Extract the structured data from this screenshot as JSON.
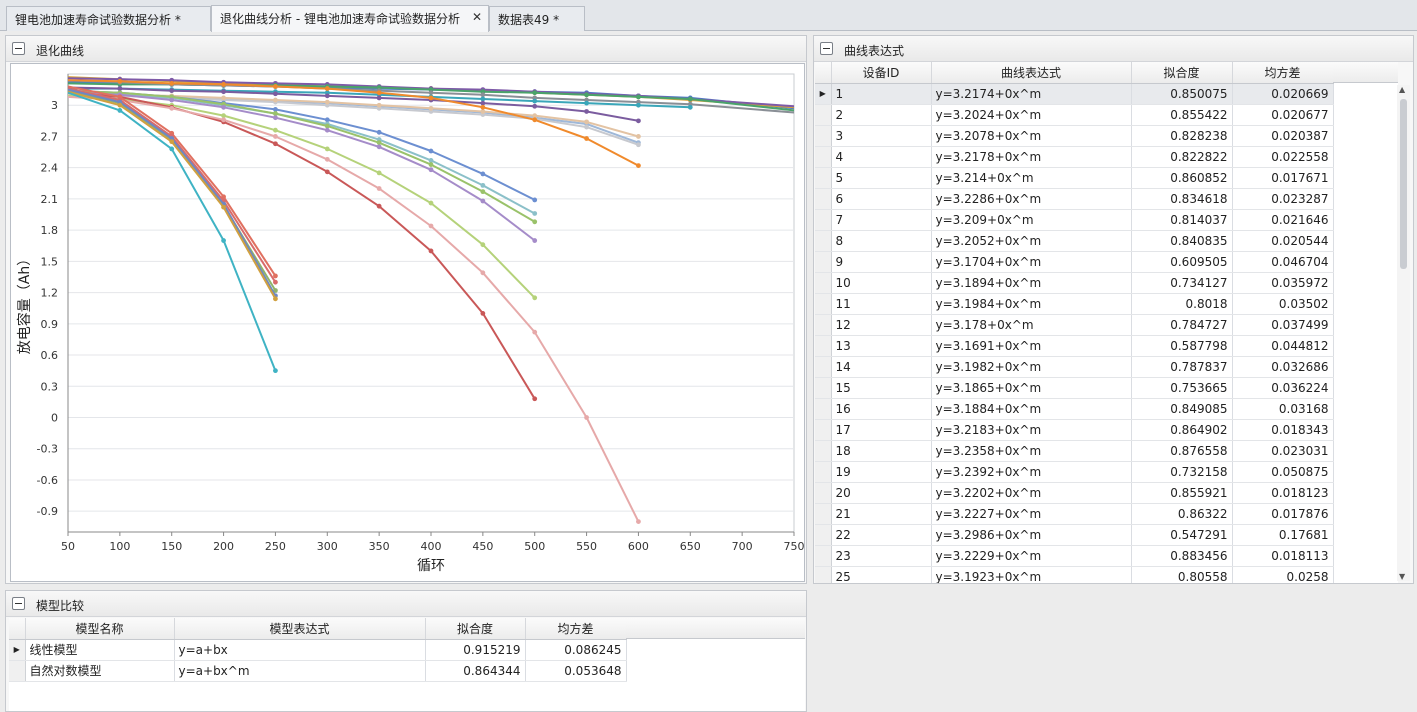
{
  "tabs": [
    {
      "label": "锂电池加速寿命试验数据分析 *"
    },
    {
      "label": "退化曲线分析 - 锂电池加速寿命试验数据分析"
    },
    {
      "label": "数据表49 *"
    }
  ],
  "chart_panel": {
    "title": "退化曲线"
  },
  "expr_panel": {
    "title": "曲线表达式",
    "columns": [
      "设备ID",
      "曲线表达式",
      "拟合度",
      "均方差"
    ],
    "rows": [
      {
        "id": "1",
        "expr": "y=3.2174+0x^m",
        "fit": "0.850075",
        "mse": "0.020669"
      },
      {
        "id": "2",
        "expr": "y=3.2024+0x^m",
        "fit": "0.855422",
        "mse": "0.020677"
      },
      {
        "id": "3",
        "expr": "y=3.2078+0x^m",
        "fit": "0.828238",
        "mse": "0.020387"
      },
      {
        "id": "4",
        "expr": "y=3.2178+0x^m",
        "fit": "0.822822",
        "mse": "0.022558"
      },
      {
        "id": "5",
        "expr": "y=3.214+0x^m",
        "fit": "0.860852",
        "mse": "0.017671"
      },
      {
        "id": "6",
        "expr": "y=3.2286+0x^m",
        "fit": "0.834618",
        "mse": "0.023287"
      },
      {
        "id": "7",
        "expr": "y=3.209+0x^m",
        "fit": "0.814037",
        "mse": "0.021646"
      },
      {
        "id": "8",
        "expr": "y=3.2052+0x^m",
        "fit": "0.840835",
        "mse": "0.020544"
      },
      {
        "id": "9",
        "expr": "y=3.1704+0x^m",
        "fit": "0.609505",
        "mse": "0.046704"
      },
      {
        "id": "10",
        "expr": "y=3.1894+0x^m",
        "fit": "0.734127",
        "mse": "0.035972"
      },
      {
        "id": "11",
        "expr": "y=3.1984+0x^m",
        "fit": "0.8018",
        "mse": "0.03502"
      },
      {
        "id": "12",
        "expr": "y=3.178+0x^m",
        "fit": "0.784727",
        "mse": "0.037499"
      },
      {
        "id": "13",
        "expr": "y=3.1691+0x^m",
        "fit": "0.587798",
        "mse": "0.044812"
      },
      {
        "id": "14",
        "expr": "y=3.1982+0x^m",
        "fit": "0.787837",
        "mse": "0.032686"
      },
      {
        "id": "15",
        "expr": "y=3.1865+0x^m",
        "fit": "0.753665",
        "mse": "0.036224"
      },
      {
        "id": "16",
        "expr": "y=3.1884+0x^m",
        "fit": "0.849085",
        "mse": "0.03168"
      },
      {
        "id": "17",
        "expr": "y=3.2183+0x^m",
        "fit": "0.864902",
        "mse": "0.018343"
      },
      {
        "id": "18",
        "expr": "y=3.2358+0x^m",
        "fit": "0.876558",
        "mse": "0.023031"
      },
      {
        "id": "19",
        "expr": "y=3.2392+0x^m",
        "fit": "0.732158",
        "mse": "0.050875"
      },
      {
        "id": "20",
        "expr": "y=3.2202+0x^m",
        "fit": "0.855921",
        "mse": "0.018123"
      },
      {
        "id": "21",
        "expr": "y=3.2227+0x^m",
        "fit": "0.86322",
        "mse": "0.017876"
      },
      {
        "id": "22",
        "expr": "y=3.2986+0x^m",
        "fit": "0.547291",
        "mse": "0.17681"
      },
      {
        "id": "23",
        "expr": "y=3.2229+0x^m",
        "fit": "0.883456",
        "mse": "0.018113"
      },
      {
        "id": "25",
        "expr": "y=3.1923+0x^m",
        "fit": "0.80558",
        "mse": "0.0258"
      }
    ]
  },
  "model_panel": {
    "title": "模型比较",
    "columns": [
      "模型名称",
      "模型表达式",
      "拟合度",
      "均方差"
    ],
    "rows": [
      {
        "name": "线性模型",
        "expr": "y=a+bx",
        "fit": "0.915219",
        "mse": "0.086245"
      },
      {
        "name": "自然对数模型",
        "expr": "y=a+bx^m",
        "fit": "0.864344",
        "mse": "0.053648"
      }
    ]
  },
  "chart_data": {
    "type": "line",
    "title": "",
    "xlabel": "循环",
    "ylabel": "放电容量（Ah）",
    "xlim": [
      50,
      750
    ],
    "ylim": [
      -1.1,
      3.3
    ],
    "xticks": [
      50,
      100,
      150,
      200,
      250,
      300,
      350,
      400,
      450,
      500,
      550,
      600,
      650,
      700,
      750
    ],
    "yticks": [
      3,
      2.7,
      2.4,
      2.1,
      1.8,
      1.5,
      1.2,
      0.9,
      0.6,
      0.3,
      0,
      -0.3,
      -0.6,
      -0.9
    ],
    "grid": true,
    "series": [
      {
        "color": "#4e7ac7",
        "x": [
          50,
          100,
          150,
          200,
          250,
          300,
          350,
          400,
          450,
          500,
          550,
          600,
          650,
          750
        ],
        "y": [
          3.22,
          3.21,
          3.2,
          3.19,
          3.18,
          3.17,
          3.16,
          3.15,
          3.14,
          3.13,
          3.12,
          3.09,
          3.07,
          2.97
        ]
      },
      {
        "color": "#d8a43b",
        "x": [
          50,
          100,
          150,
          200,
          250,
          300,
          350,
          400,
          450,
          500,
          550,
          600,
          650,
          750
        ],
        "y": [
          3.27,
          3.25,
          3.23,
          3.21,
          3.2,
          3.18,
          3.17,
          3.16,
          3.14,
          3.12,
          3.1,
          3.08,
          3.05,
          2.98
        ]
      },
      {
        "color": "#7e5aa8",
        "x": [
          50,
          100,
          150,
          200,
          250,
          300,
          350,
          400,
          450,
          500,
          550,
          600,
          650,
          750
        ],
        "y": [
          3.26,
          3.25,
          3.24,
          3.22,
          3.21,
          3.2,
          3.18,
          3.16,
          3.15,
          3.13,
          3.11,
          3.09,
          3.06,
          2.99
        ]
      },
      {
        "color": "#4aa36b",
        "x": [
          50,
          100,
          150,
          200,
          250,
          300,
          350,
          400,
          450,
          500,
          550,
          600,
          650,
          750
        ],
        "y": [
          3.21,
          3.2,
          3.2,
          3.19,
          3.19,
          3.18,
          3.17,
          3.15,
          3.13,
          3.12,
          3.1,
          3.08,
          3.06,
          2.95
        ]
      },
      {
        "color": "#8a8f96",
        "x": [
          50,
          100,
          150,
          200,
          250,
          300,
          350,
          400,
          450,
          500,
          550,
          600,
          650,
          750
        ],
        "y": [
          3.24,
          3.22,
          3.2,
          3.19,
          3.18,
          3.16,
          3.14,
          3.12,
          3.1,
          3.07,
          3.05,
          3.03,
          3.01,
          2.93
        ]
      },
      {
        "color": "#3aa6b9",
        "x": [
          50,
          100,
          150,
          200,
          250,
          300,
          350,
          400,
          450,
          500,
          550,
          600,
          650
        ],
        "y": [
          3.16,
          3.16,
          3.15,
          3.14,
          3.13,
          3.12,
          3.1,
          3.08,
          3.06,
          3.04,
          3.02,
          3.0,
          2.98
        ]
      },
      {
        "color": "#9fb8d8",
        "x": [
          50,
          100,
          150,
          200,
          250,
          300,
          350,
          400,
          450,
          500,
          550,
          600
        ],
        "y": [
          3.12,
          3.1,
          3.08,
          3.06,
          3.04,
          3.02,
          2.99,
          2.96,
          2.93,
          2.88,
          2.82,
          2.64
        ]
      },
      {
        "color": "#c7c9cf",
        "x": [
          50,
          100,
          150,
          200,
          250,
          300,
          350,
          400,
          450,
          500,
          550,
          600
        ],
        "y": [
          3.1,
          3.09,
          3.07,
          3.05,
          3.03,
          3.0,
          2.97,
          2.94,
          2.91,
          2.87,
          2.79,
          2.62
        ]
      },
      {
        "color": "#e3c3a3",
        "x": [
          50,
          100,
          150,
          200,
          250,
          300,
          350,
          400,
          450,
          500,
          550,
          600
        ],
        "y": [
          3.11,
          3.1,
          3.09,
          3.07,
          3.05,
          3.03,
          3.0,
          2.97,
          2.94,
          2.9,
          2.84,
          2.7
        ]
      },
      {
        "color": "#7b5c9f",
        "x": [
          50,
          100,
          150,
          200,
          250,
          300,
          350,
          400,
          450,
          500,
          550,
          600
        ],
        "y": [
          3.17,
          3.16,
          3.14,
          3.13,
          3.11,
          3.09,
          3.07,
          3.05,
          3.02,
          2.99,
          2.94,
          2.85
        ]
      },
      {
        "color": "#f08a2c",
        "x": [
          50,
          100,
          150,
          200,
          250,
          300,
          350,
          400,
          450,
          500,
          550,
          600
        ],
        "y": [
          3.24,
          3.23,
          3.21,
          3.2,
          3.18,
          3.16,
          3.12,
          3.07,
          2.98,
          2.86,
          2.68,
          2.42
        ]
      },
      {
        "color": "#6c8fd1",
        "x": [
          50,
          100,
          150,
          200,
          250,
          300,
          350,
          400,
          450,
          500
        ],
        "y": [
          3.14,
          3.12,
          3.08,
          3.02,
          2.96,
          2.86,
          2.74,
          2.56,
          2.34,
          2.09
        ]
      },
      {
        "color": "#8bc0c9",
        "x": [
          50,
          100,
          150,
          200,
          250,
          300,
          350,
          400,
          450,
          500
        ],
        "y": [
          3.13,
          3.11,
          3.07,
          3.0,
          2.92,
          2.82,
          2.67,
          2.47,
          2.23,
          1.96
        ]
      },
      {
        "color": "#9ac26a",
        "x": [
          50,
          100,
          150,
          200,
          250,
          300,
          350,
          400,
          450,
          500
        ],
        "y": [
          3.14,
          3.12,
          3.08,
          3.01,
          2.92,
          2.8,
          2.64,
          2.43,
          2.17,
          1.88
        ]
      },
      {
        "color": "#a58cc9",
        "x": [
          50,
          100,
          150,
          200,
          250,
          300,
          350,
          400,
          450,
          500
        ],
        "y": [
          3.12,
          3.1,
          3.05,
          2.98,
          2.88,
          2.76,
          2.6,
          2.38,
          2.08,
          1.7
        ]
      },
      {
        "color": "#b5d27a",
        "x": [
          50,
          100,
          150,
          200,
          250,
          300,
          350,
          400,
          450,
          500
        ],
        "y": [
          3.09,
          3.06,
          3.0,
          2.9,
          2.76,
          2.58,
          2.35,
          2.06,
          1.66,
          1.15
        ]
      },
      {
        "color": "#c95858",
        "x": [
          50,
          100,
          150,
          200,
          250,
          300,
          350,
          400,
          450,
          500
        ],
        "y": [
          3.12,
          3.08,
          2.98,
          2.84,
          2.63,
          2.36,
          2.03,
          1.6,
          1.0,
          0.18
        ]
      },
      {
        "color": "#e6a9a9",
        "x": [
          50,
          100,
          150,
          200,
          250,
          300,
          350,
          400,
          450,
          500,
          550,
          600
        ],
        "y": [
          3.08,
          3.05,
          2.97,
          2.86,
          2.7,
          2.48,
          2.2,
          1.84,
          1.39,
          0.82,
          0.0,
          -1.0
        ]
      },
      {
        "color": "#e07060",
        "x": [
          50,
          100,
          150,
          200,
          250
        ],
        "y": [
          3.18,
          3.08,
          2.73,
          2.12,
          1.36
        ]
      },
      {
        "color": "#d96b6b",
        "x": [
          50,
          100,
          150,
          200,
          250
        ],
        "y": [
          3.16,
          3.05,
          2.7,
          2.08,
          1.3
        ]
      },
      {
        "color": "#8fb36b",
        "x": [
          50,
          100,
          150,
          200,
          250
        ],
        "y": [
          3.14,
          3.02,
          2.67,
          2.04,
          1.22
        ]
      },
      {
        "color": "#6f87c2",
        "x": [
          50,
          100,
          150,
          200,
          250
        ],
        "y": [
          3.15,
          3.03,
          2.68,
          2.05,
          1.17
        ]
      },
      {
        "color": "#d0a040",
        "x": [
          50,
          100,
          150,
          200,
          250
        ],
        "y": [
          3.13,
          3.0,
          2.65,
          2.02,
          1.14
        ]
      },
      {
        "color": "#3fb3c4",
        "x": [
          50,
          100,
          150,
          200,
          250
        ],
        "y": [
          3.12,
          2.95,
          2.58,
          1.7,
          0.45
        ]
      }
    ]
  }
}
